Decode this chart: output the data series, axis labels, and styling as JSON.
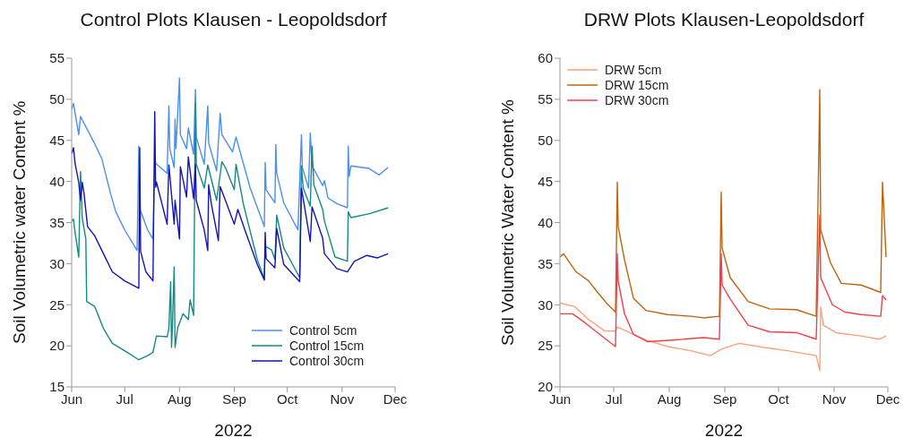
{
  "chart_data": [
    {
      "type": "line",
      "title": "Control Plots Klausen - Leopoldsdorf",
      "xlabel": "2022",
      "ylabel": "Soil Volumetric water Content %",
      "xlim": [
        "2022-06-01",
        "2022-12-01"
      ],
      "xticks": [
        {
          "value": "2022-06-01",
          "label": "Jun"
        },
        {
          "value": "2022-07-01",
          "label": "Jul"
        },
        {
          "value": "2022-08-01",
          "label": "Aug"
        },
        {
          "value": "2022-09-01",
          "label": "Sep"
        },
        {
          "value": "2022-10-01",
          "label": "Oct"
        },
        {
          "value": "2022-11-01",
          "label": "Nov"
        },
        {
          "value": "2022-12-01",
          "label": "Dec"
        }
      ],
      "ylim": [
        15,
        55
      ],
      "yticks": [
        15,
        20,
        25,
        30,
        35,
        40,
        45,
        50,
        55
      ],
      "legend": "bottom right",
      "series": [
        {
          "name": "Control 5cm",
          "color": "#4d8ef0",
          "x": [
            "2022-06-01",
            "2022-06-02",
            "2022-06-05",
            "2022-06-06",
            "2022-06-14",
            "2022-06-18",
            "2022-06-23",
            "2022-06-26",
            "2022-07-01",
            "2022-07-08",
            "2022-07-09",
            "2022-07-09T12:00",
            "2022-07-14",
            "2022-07-17",
            "2022-07-18",
            "2022-07-25",
            "2022-07-26",
            "2022-07-26T12:00",
            "2022-07-29",
            "2022-07-29T12:00",
            "2022-07-30",
            "2022-08-01",
            "2022-08-01T12:00",
            "2022-08-05",
            "2022-08-06",
            "2022-08-09",
            "2022-08-10",
            "2022-08-10T12:00",
            "2022-08-15",
            "2022-08-17",
            "2022-08-17T12:00",
            "2022-08-22",
            "2022-08-24",
            "2022-08-25",
            "2022-08-31",
            "2022-09-02",
            "2022-09-10",
            "2022-09-18",
            "2022-09-18T12:00",
            "2022-09-19",
            "2022-09-24",
            "2022-09-24T12:00",
            "2022-09-25",
            "2022-09-29",
            "2022-10-07",
            "2022-10-09",
            "2022-10-09T12:00",
            "2022-10-13",
            "2022-10-14",
            "2022-10-15",
            "2022-10-21",
            "2022-10-22",
            "2022-10-24",
            "2022-10-29",
            "2022-11-04",
            "2022-11-04T12:00",
            "2022-11-05",
            "2022-11-06",
            "2022-11-16",
            "2022-11-22",
            "2022-11-27"
          ],
          "values": [
            48.8,
            49.5,
            45.7,
            47.9,
            44.6,
            42.8,
            38.5,
            36.3,
            34.1,
            31.6,
            44.3,
            36.7,
            34.1,
            33.0,
            42.3,
            41.0,
            49.2,
            44.0,
            41.7,
            47.6,
            44.0,
            52.6,
            45.7,
            44.0,
            46.5,
            43.3,
            51.2,
            45.4,
            42.1,
            49.2,
            44.7,
            41.3,
            48.3,
            45.7,
            43.6,
            45.4,
            39.2,
            34.5,
            42.3,
            39.0,
            37.4,
            44.5,
            41.0,
            37.4,
            34.1,
            45.7,
            41.7,
            39.2,
            45.9,
            41.9,
            39.5,
            40.1,
            38.0,
            37.3,
            36.8,
            44.3,
            40.6,
            41.9,
            41.6,
            40.8,
            41.7
          ]
        },
        {
          "name": "Control 15cm",
          "color": "#158a82",
          "x": [
            "2022-06-01",
            "2022-06-02",
            "2022-06-03",
            "2022-06-05",
            "2022-06-06",
            "2022-06-07",
            "2022-06-09",
            "2022-06-09T12:00",
            "2022-06-14",
            "2022-06-19",
            "2022-06-24",
            "2022-07-01",
            "2022-07-09",
            "2022-07-14",
            "2022-07-17",
            "2022-07-19",
            "2022-07-25",
            "2022-07-26",
            "2022-07-27",
            "2022-07-27T12:00",
            "2022-07-28",
            "2022-07-29",
            "2022-07-29T12:00",
            "2022-07-31",
            "2022-08-03",
            "2022-08-06",
            "2022-08-07",
            "2022-08-09",
            "2022-08-10",
            "2022-08-10T12:00",
            "2022-08-15",
            "2022-08-17",
            "2022-08-22",
            "2022-08-25",
            "2022-08-27",
            "2022-09-01",
            "2022-09-02",
            "2022-09-06",
            "2022-09-09",
            "2022-09-14",
            "2022-09-18",
            "2022-09-18T12:00",
            "2022-09-22",
            "2022-09-24",
            "2022-09-25",
            "2022-09-29",
            "2022-10-08",
            "2022-10-09",
            "2022-10-10",
            "2022-10-14",
            "2022-10-15",
            "2022-10-16",
            "2022-10-21",
            "2022-10-22",
            "2022-10-28",
            "2022-11-04",
            "2022-11-04T12:00",
            "2022-11-06",
            "2022-11-17",
            "2022-11-27"
          ],
          "values": [
            35.2,
            35.4,
            33.7,
            30.8,
            41.2,
            35.5,
            33.0,
            25.4,
            24.8,
            22.1,
            20.3,
            19.4,
            18.3,
            18.8,
            19.2,
            21.2,
            21.1,
            22.1,
            27.8,
            19.8,
            22.3,
            29.6,
            19.8,
            22.2,
            23.9,
            23.2,
            25.6,
            23.7,
            49.5,
            42.1,
            39.2,
            42.0,
            37.7,
            42.4,
            41.7,
            39.0,
            42.1,
            37.4,
            34.8,
            30.5,
            28.1,
            32.1,
            31.7,
            30.5,
            35.9,
            31.9,
            28.3,
            41.9,
            39.2,
            37.0,
            44.3,
            39.6,
            36.6,
            35.2,
            30.8,
            30.3,
            36.3,
            35.6,
            36.1,
            36.8
          ]
        },
        {
          "name": "Control 30cm",
          "color": "#1414b4",
          "x": [
            "2022-06-01",
            "2022-06-02",
            "2022-06-03",
            "2022-06-05",
            "2022-06-06",
            "2022-06-07",
            "2022-06-08",
            "2022-06-10",
            "2022-06-14",
            "2022-06-19",
            "2022-06-24",
            "2022-07-01",
            "2022-07-09",
            "2022-07-09T12:00",
            "2022-07-10",
            "2022-07-13",
            "2022-07-17",
            "2022-07-18",
            "2022-07-18T12:00",
            "2022-07-19",
            "2022-07-25",
            "2022-07-26",
            "2022-07-29",
            "2022-07-29T12:00",
            "2022-08-01",
            "2022-08-01T12:00",
            "2022-08-05",
            "2022-08-06",
            "2022-08-09",
            "2022-08-10",
            "2022-08-10T12:00",
            "2022-08-15",
            "2022-08-17",
            "2022-08-17T12:00",
            "2022-08-19",
            "2022-08-23",
            "2022-08-24",
            "2022-08-27",
            "2022-09-01",
            "2022-09-03",
            "2022-09-07",
            "2022-09-14",
            "2022-09-18",
            "2022-09-18T12:00",
            "2022-09-19",
            "2022-09-24",
            "2022-09-25",
            "2022-09-29",
            "2022-10-08",
            "2022-10-09",
            "2022-10-14",
            "2022-10-15",
            "2022-10-21",
            "2022-10-22",
            "2022-10-29",
            "2022-11-04",
            "2022-11-08",
            "2022-11-15",
            "2022-11-21",
            "2022-11-27"
          ],
          "values": [
            43.4,
            44.1,
            42.1,
            39.9,
            37.7,
            39.9,
            38.5,
            34.5,
            33.4,
            31.2,
            29.0,
            27.9,
            27.0,
            44.1,
            31.5,
            29.0,
            27.9,
            48.5,
            39.3,
            39.9,
            34.8,
            42.0,
            34.8,
            37.7,
            33.0,
            41.8,
            38.1,
            43.0,
            37.9,
            42.1,
            37.7,
            34.1,
            31.6,
            39.6,
            37.3,
            32.8,
            39.4,
            37.7,
            34.8,
            36.6,
            34.1,
            29.9,
            28.0,
            33.8,
            30.6,
            29.5,
            34.3,
            29.9,
            27.8,
            39.2,
            32.7,
            36.9,
            33.1,
            31.2,
            29.4,
            29.0,
            30.3,
            31.0,
            30.7,
            31.2
          ]
        }
      ]
    },
    {
      "type": "line",
      "title": "DRW Plots Klausen-Leopoldsdorf",
      "xlabel": "2022",
      "ylabel": "Soil Volumetric Water Content %",
      "xlim": [
        "2022-06-01",
        "2022-12-01"
      ],
      "xticks": [
        {
          "value": "2022-06-01",
          "label": "Jun"
        },
        {
          "value": "2022-07-01",
          "label": "Jul"
        },
        {
          "value": "2022-08-01",
          "label": "Aug"
        },
        {
          "value": "2022-09-01",
          "label": "Sep"
        },
        {
          "value": "2022-10-01",
          "label": "Oct"
        },
        {
          "value": "2022-11-01",
          "label": "Nov"
        },
        {
          "value": "2022-12-01",
          "label": "Dec"
        }
      ],
      "ylim": [
        20,
        60
      ],
      "yticks": [
        20,
        25,
        30,
        35,
        40,
        45,
        50,
        55,
        60
      ],
      "legend": "top left",
      "series": [
        {
          "name": "DRW 5cm",
          "color": "#ffa07a",
          "x": [
            "2022-06-01",
            "2022-06-09",
            "2022-06-17",
            "2022-06-26",
            "2022-07-02",
            "2022-07-03",
            "2022-07-08",
            "2022-07-19",
            "2022-07-31",
            "2022-08-13",
            "2022-08-24",
            "2022-08-30",
            "2022-09-09",
            "2022-09-23",
            "2022-10-06",
            "2022-10-22",
            "2022-10-24",
            "2022-10-24T12:00",
            "2022-10-26",
            "2022-11-02",
            "2022-11-16",
            "2022-11-26",
            "2022-11-30"
          ],
          "values": [
            30.2,
            29.8,
            28.2,
            26.8,
            26.8,
            27.3,
            26.8,
            25.7,
            24.9,
            24.4,
            23.8,
            24.6,
            25.3,
            24.8,
            24.4,
            23.8,
            22.0,
            29.7,
            27.5,
            26.6,
            26.2,
            25.8,
            26.2
          ]
        },
        {
          "name": "DRW 15cm",
          "color": "#c0640c",
          "x": [
            "2022-06-01",
            "2022-06-03",
            "2022-06-10",
            "2022-06-17",
            "2022-06-22",
            "2022-06-27",
            "2022-07-02",
            "2022-07-03",
            "2022-07-03T12:00",
            "2022-07-07",
            "2022-07-12",
            "2022-07-19",
            "2022-07-31",
            "2022-08-13",
            "2022-08-20",
            "2022-08-29",
            "2022-08-30",
            "2022-08-30T12:00",
            "2022-09-04",
            "2022-09-14",
            "2022-09-26",
            "2022-10-11",
            "2022-10-22",
            "2022-10-24",
            "2022-10-24T12:00",
            "2022-10-30",
            "2022-11-05",
            "2022-11-16",
            "2022-11-27",
            "2022-11-28",
            "2022-11-30"
          ],
          "values": [
            35.8,
            36.2,
            34.0,
            32.9,
            31.5,
            30.2,
            29.1,
            44.9,
            39.5,
            35.5,
            30.8,
            29.3,
            28.8,
            28.6,
            28.4,
            28.6,
            43.7,
            36.9,
            33.3,
            30.4,
            29.5,
            29.4,
            28.6,
            56.2,
            39.1,
            35.1,
            32.6,
            32.4,
            31.5,
            44.9,
            35.8
          ]
        },
        {
          "name": "DRW 30cm",
          "color": "#f0404a",
          "x": [
            "2022-06-01",
            "2022-06-08",
            "2022-06-15",
            "2022-06-22",
            "2022-07-02",
            "2022-07-03",
            "2022-07-03T12:00",
            "2022-07-07",
            "2022-07-12",
            "2022-07-20",
            "2022-08-03",
            "2022-08-20",
            "2022-08-29",
            "2022-08-30",
            "2022-08-30T12:00",
            "2022-09-04",
            "2022-09-14",
            "2022-09-26",
            "2022-10-11",
            "2022-10-22",
            "2022-10-24",
            "2022-10-24T12:00",
            "2022-10-31",
            "2022-11-07",
            "2022-11-16",
            "2022-11-27",
            "2022-11-28",
            "2022-11-30"
          ],
          "values": [
            28.9,
            28.9,
            27.8,
            26.6,
            24.9,
            36.2,
            32.9,
            28.9,
            26.4,
            25.5,
            25.7,
            26.0,
            25.8,
            36.2,
            32.4,
            30.7,
            27.5,
            26.7,
            26.6,
            25.8,
            40.9,
            33.3,
            30.0,
            29.1,
            28.8,
            28.6,
            31.1,
            30.6
          ]
        }
      ]
    }
  ]
}
